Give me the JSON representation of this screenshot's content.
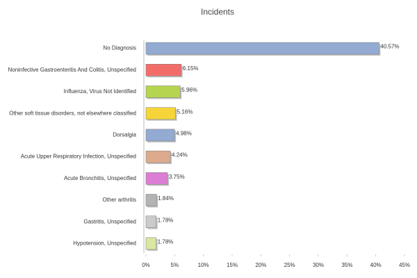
{
  "chart_data": {
    "type": "bar",
    "orientation": "horizontal",
    "title": "Incidents",
    "categories": [
      "No Diagnosis",
      "Noninfective Gastroenteritis And Colitis, Unspecified",
      "Influenza, Virus Not Identified",
      "Other soft tissue disorders, not elsewhere classified",
      "Dorsalgia",
      "Acute Upper Respiratory Infection, Unspecified",
      "Acute Bronchitis, Unspecified",
      "Other arthritis",
      "Gastritis, Unspecified",
      "Hypotension, Unspecified"
    ],
    "values": [
      40.57,
      6.15,
      5.96,
      5.16,
      4.98,
      4.24,
      3.75,
      1.84,
      1.78,
      1.78
    ],
    "value_labels": [
      "40.57%",
      "6.15%",
      "5.96%",
      "5.16%",
      "4.98%",
      "4.24%",
      "3.75%",
      "1.84%",
      "1.78%",
      "1.78%"
    ],
    "colors": [
      "#93abd3",
      "#f26d6a",
      "#b5d550",
      "#f6d538",
      "#93abd3",
      "#ddaa8d",
      "#db7fd4",
      "#b3b3b3",
      "#cbcbcb",
      "#d9e7a2"
    ],
    "xlim": [
      0,
      45
    ],
    "xticks": [
      {
        "value": 0,
        "label": "0%"
      },
      {
        "value": 5,
        "label": "5%"
      },
      {
        "value": 10,
        "label": "10%"
      },
      {
        "value": 15,
        "label": "15%"
      },
      {
        "value": 20,
        "label": "20%"
      },
      {
        "value": 25,
        "label": "25%"
      },
      {
        "value": 30,
        "label": "30%"
      },
      {
        "value": 35,
        "label": "35%"
      },
      {
        "value": 40,
        "label": "40%"
      },
      {
        "value": 45,
        "label": "45%"
      }
    ]
  }
}
